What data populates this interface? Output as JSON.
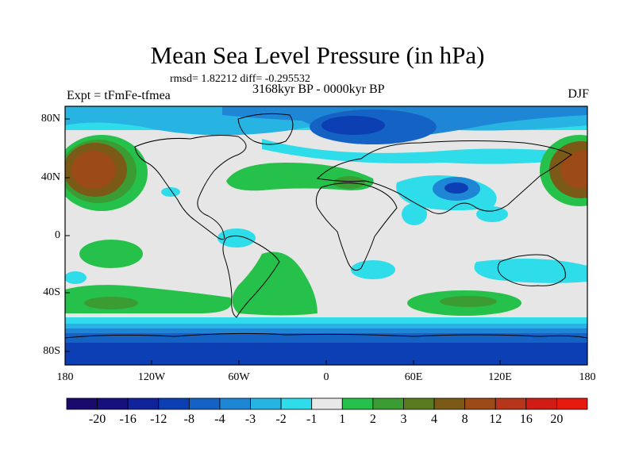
{
  "title": "Mean Sea Level Pressure (in hPa)",
  "stats_line": "rmsd= 1.82212  diff= -0.295532",
  "experiment_label": "Expt = tFmFe-tfmea",
  "period_label": "3168kyr BP - 0000kyr BP",
  "season_label": "DJF",
  "lat_ticks": [
    "80N",
    "40N",
    "0",
    "40S",
    "80S"
  ],
  "lon_ticks": [
    "180",
    "120W",
    "60W",
    "0",
    "60E",
    "120E",
    "180"
  ],
  "colorbar": {
    "labels": [
      "-20",
      "-16",
      "-12",
      "-8",
      "-4",
      "-3",
      "-2",
      "-1",
      "1",
      "2",
      "3",
      "4",
      "8",
      "12",
      "16",
      "20"
    ],
    "colors": [
      "#1a0a6e",
      "#16107e",
      "#10239b",
      "#0b3fb3",
      "#1463c4",
      "#1e86d4",
      "#27b4e3",
      "#2fdcea",
      "#e8e8e8",
      "#26c14a",
      "#3b9c33",
      "#5a7b1f",
      "#7a5a16",
      "#9b4a18",
      "#b7351a",
      "#d01c15",
      "#e81a10"
    ]
  },
  "map_palette": {
    "ocean_neutral": "#e6e6e6",
    "coast": "#000000"
  }
}
